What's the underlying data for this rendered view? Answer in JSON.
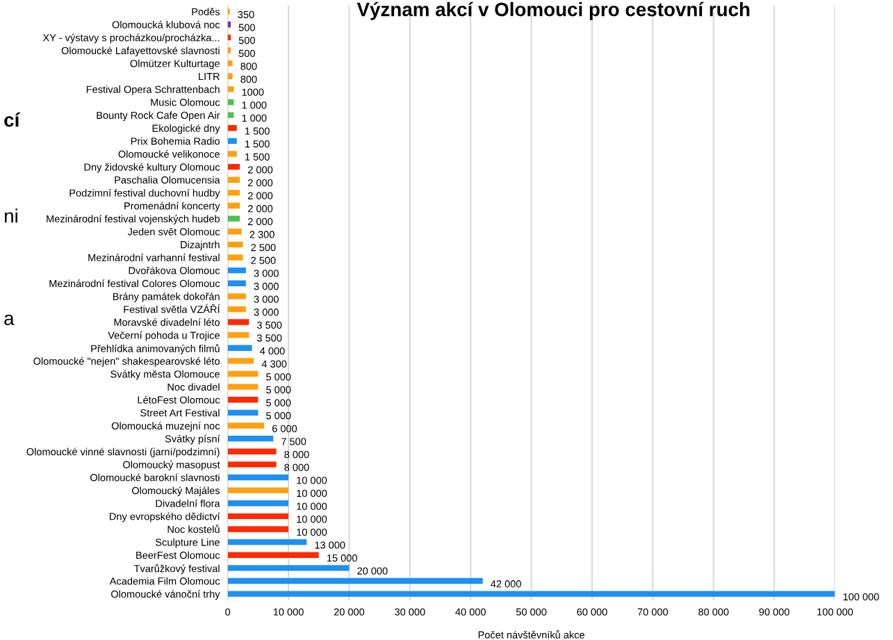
{
  "chart_data": {
    "type": "bar",
    "orientation": "horizontal",
    "title": "Význam akcí v Olomouci pro cestovní ruch",
    "xlabel": "Počet návštěvníků akce",
    "categories": [
      "Poděs",
      "Olomoucká klubová noc",
      "XY - výstavy s procházkou/procházka...",
      "Olomoucké Lafayettovské slavnosti",
      "Olmützer Kulturtage",
      "LITR",
      "Festival Opera Schrattenbach",
      "Music Olomouc",
      "Bounty Rock Cafe Open Air",
      "Ekologické dny",
      "Prix Bohemia Radio",
      "Olomoucké velikonoce",
      "Dny židovské kultury Olomouc",
      "Paschalia Olomucensia",
      "Podzimní festival duchovní hudby",
      "Promenádní koncerty",
      "Mezinárodní festival vojenských hudeb",
      "Jeden svět Olomouc",
      "Dizajntrh",
      "Mezinárodní varhanní festival",
      "Dvořákova Olomouc",
      "Mezinárodní festival Colores Olomouc",
      "Brány památek dokořán",
      "Festival světla VZÁŘÍ",
      "Moravské divadelní léto",
      "Večerní pohoda u Trojice",
      "Přehlídka animovaných filmů",
      "Olomoucké \"nejen\" shakespearovské léto",
      "Svátky města Olomouce",
      "Noc divadel",
      "LétoFest Olomouc",
      "Street Art Festival",
      "Olomoucká muzejní noc",
      "Svátky písní",
      "Olomoucké vinné slavnosti (jarní/podzimní)",
      "Olomoucký masopust",
      "Olomoucké barokní slavnosti",
      "Olomoucký Majáles",
      "Divadelní flora",
      "Dny evropského dědictví",
      "Noc kostelů",
      "Sculpture Line",
      "BeerFest Olomouc",
      "Tvarůžkový festival",
      "Academia Film Olomouc",
      "Olomoucké vánoční trhy"
    ],
    "values": [
      350,
      500,
      500,
      500,
      800,
      800,
      1000,
      1000,
      1000,
      1500,
      1500,
      1500,
      2000,
      2000,
      2000,
      2000,
      2000,
      2300,
      2500,
      2500,
      3000,
      3000,
      3000,
      3000,
      3500,
      3500,
      4000,
      4300,
      5000,
      5000,
      5000,
      5000,
      6000,
      7500,
      8000,
      8000,
      10000,
      10000,
      10000,
      10000,
      10000,
      13000,
      15000,
      20000,
      42000,
      100000
    ],
    "value_labels": [
      "350",
      "500",
      "500",
      "500",
      "800",
      "800",
      "1000",
      "1 000",
      "1 000",
      "1 500",
      "1 500",
      "1 500",
      "2 000",
      "2 000",
      "2 000",
      "2 000",
      "2 000",
      "2 300",
      "2 500",
      "2 500",
      "3 000",
      "3 000",
      "3 000",
      "3 000",
      "3 500",
      "3 500",
      "4 000",
      "4 300",
      "5 000",
      "5 000",
      "5 000",
      "5 000",
      "6 000",
      "7 500",
      "8 000",
      "8 000",
      "10 000",
      "10 000",
      "10 000",
      "10 000",
      "10 000",
      "13 000",
      "15 000",
      "20 000",
      "42 000",
      "100 000"
    ],
    "colors": [
      "#ffa010",
      "#7030a0",
      "#ff2a00",
      "#ffa010",
      "#ffa010",
      "#ffa010",
      "#ffa010",
      "#50c050",
      "#50c050",
      "#ff2a00",
      "#1e90f0",
      "#ffa010",
      "#ff2a00",
      "#ffa010",
      "#ffa010",
      "#ffa010",
      "#50c050",
      "#ffa010",
      "#ffa010",
      "#ffa010",
      "#1e90f0",
      "#1e90f0",
      "#ffa010",
      "#ffa010",
      "#ff2a00",
      "#ffa010",
      "#1e90f0",
      "#ffa010",
      "#ffa010",
      "#ffa010",
      "#ff2a00",
      "#1e90f0",
      "#ffa010",
      "#1e90f0",
      "#ff2a00",
      "#ff2a00",
      "#1e90f0",
      "#ffa010",
      "#1e90f0",
      "#ff2a00",
      "#ff2a00",
      "#1e90f0",
      "#ff2a00",
      "#1e90f0",
      "#1e90f0",
      "#1e90f0"
    ],
    "xlim": [
      0,
      100000
    ],
    "xticks": [
      0,
      {
        "value": 10000,
        "label": "10 000"
      },
      {
        "value": 20000,
        "label": "20 000"
      },
      {
        "value": 30000,
        "label": "30 000"
      },
      {
        "value": 40000,
        "label": "40 000"
      },
      {
        "value": 50000,
        "label": "50 000"
      },
      {
        "value": 60000,
        "label": "60 000"
      },
      {
        "value": 70000,
        "label": "70 000"
      },
      {
        "value": 80000,
        "label": "80 000"
      },
      {
        "value": 90000,
        "label": "90 000"
      },
      {
        "value": 100000,
        "label": "100 000"
      }
    ],
    "grid": "x",
    "annotations": [
      "cí",
      "ni",
      "a"
    ]
  }
}
